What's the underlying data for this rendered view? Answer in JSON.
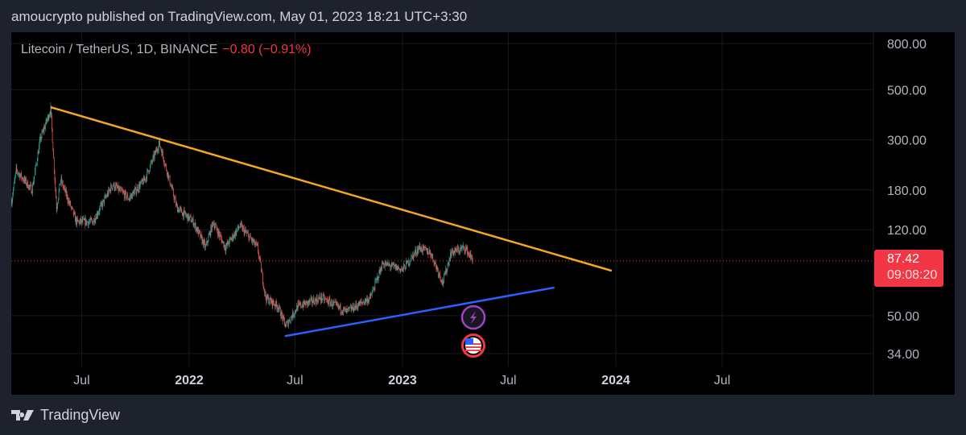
{
  "header": {
    "published": "amoucrypto published on TradingView.com, May 01, 2023 18:21 UTC+3:30"
  },
  "legend": {
    "symbol": "Litecoin / TetherUS, 1D, BINANCE",
    "change": "−0.80 (−0.91%)"
  },
  "last_price": {
    "price": "87.42",
    "countdown": "09:08:20"
  },
  "footer": {
    "brand": "TradingView"
  },
  "colors": {
    "up": "#26a69a",
    "down": "#ef5350",
    "resistance": "#f5a623",
    "support": "#2962ff",
    "last": "#f23645"
  },
  "chart_data": {
    "type": "candlestick",
    "title": "Litecoin / TetherUS, 1D, BINANCE",
    "y_scale": "log",
    "ylim": [
      30,
      900
    ],
    "price_ticks": [
      "800.00",
      "500.00",
      "300.00",
      "180.00",
      "120.00",
      "50.00",
      "34.00"
    ],
    "price_tick_values": [
      800,
      500,
      300,
      180,
      120,
      50,
      34
    ],
    "time_ticks": [
      {
        "label": "Jul",
        "date": "2021-07-01",
        "year": false
      },
      {
        "label": "2022",
        "date": "2022-01-01",
        "year": true
      },
      {
        "label": "Jul",
        "date": "2022-07-01",
        "year": false
      },
      {
        "label": "2023",
        "date": "2023-01-01",
        "year": true
      },
      {
        "label": "Jul",
        "date": "2023-07-01",
        "year": false
      },
      {
        "label": "2024",
        "date": "2024-01-01",
        "year": true
      },
      {
        "label": "Jul",
        "date": "2024-07-01",
        "year": false
      }
    ],
    "price_path": [
      [
        "2021-03-03",
        160
      ],
      [
        "2021-03-11",
        220
      ],
      [
        "2021-04-07",
        180
      ],
      [
        "2021-04-21",
        300
      ],
      [
        "2021-05-09",
        410
      ],
      [
        "2021-05-19",
        150
      ],
      [
        "2021-05-26",
        200
      ],
      [
        "2021-06-22",
        130
      ],
      [
        "2021-07-20",
        130
      ],
      [
        "2021-08-23",
        190
      ],
      [
        "2021-09-20",
        165
      ],
      [
        "2021-10-17",
        200
      ],
      [
        "2021-11-11",
        290
      ],
      [
        "2021-11-28",
        200
      ],
      [
        "2021-12-11",
        150
      ],
      [
        "2022-01-08",
        130
      ],
      [
        "2022-01-29",
        100
      ],
      [
        "2022-02-11",
        130
      ],
      [
        "2022-03-04",
        100
      ],
      [
        "2022-03-29",
        125
      ],
      [
        "2022-04-28",
        100
      ],
      [
        "2022-05-12",
        60
      ],
      [
        "2022-06-02",
        55
      ],
      [
        "2022-06-15",
        45
      ],
      [
        "2022-07-06",
        55
      ],
      [
        "2022-08-16",
        60
      ],
      [
        "2022-09-27",
        52
      ],
      [
        "2022-11-07",
        60
      ],
      [
        "2022-11-28",
        85
      ],
      [
        "2023-01-01",
        80
      ],
      [
        "2023-01-29",
        100
      ],
      [
        "2023-02-18",
        95
      ],
      [
        "2023-03-11",
        70
      ],
      [
        "2023-03-25",
        95
      ],
      [
        "2023-04-18",
        100
      ],
      [
        "2023-05-01",
        88
      ]
    ],
    "last_price": 87.42,
    "trendlines": [
      {
        "name": "resistance",
        "from": [
          "2021-05-09",
          418
        ],
        "to": [
          "2023-12-25",
          79
        ]
      },
      {
        "name": "support",
        "from": [
          "2022-06-14",
          40.6
        ],
        "to": [
          "2023-09-18",
          66.6
        ]
      }
    ]
  }
}
